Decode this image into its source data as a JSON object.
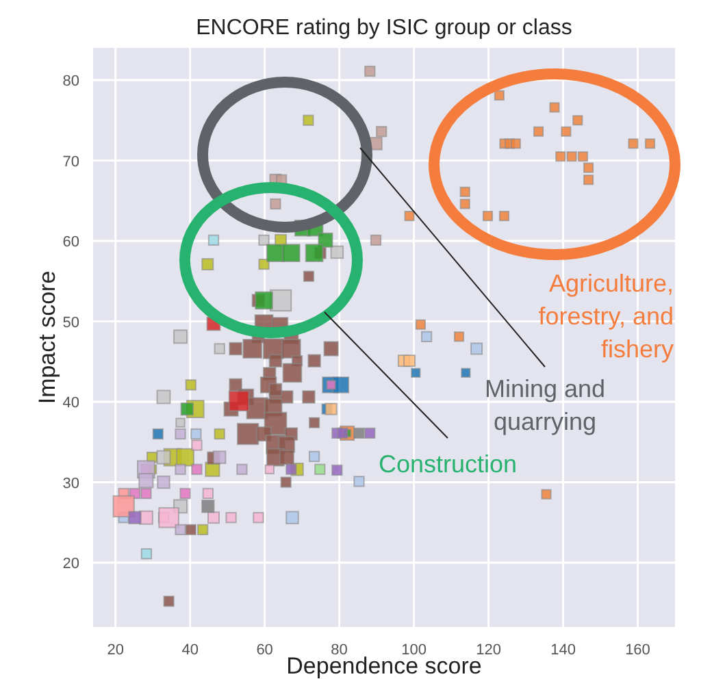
{
  "chart_data": {
    "type": "bubble",
    "title": "ENCORE rating by ISIC group or class",
    "xlabel": "Dependence score",
    "ylabel": "Impact score",
    "xlim": [
      14,
      170
    ],
    "ylim": [
      12,
      84
    ],
    "xticks": [
      20,
      40,
      60,
      80,
      100,
      120,
      140,
      160
    ],
    "yticks": [
      20,
      30,
      40,
      50,
      60,
      70,
      80
    ],
    "grid": true,
    "marker": "square",
    "annotations": [
      "Agriculture,\nforestry, and\nfishery",
      "Mining and\nquarrying",
      "Construction"
    ],
    "series": [
      {
        "color": "#f0843c",
        "x": [
          122.9,
          137.7,
          143.9,
          133.4,
          140.8,
          124.3,
          125.7,
          127.3,
          158.8,
          163.3,
          139.3,
          142.3,
          145.3,
          146.8,
          146.8,
          113.7,
          113.7,
          119.8,
          124.2,
          98.8,
          101.8,
          112.1,
          82.1,
          135.5
        ],
        "values": [
          78.1,
          76.6,
          75.0,
          73.6,
          73.6,
          72.1,
          72.1,
          72.1,
          72.1,
          72.1,
          70.5,
          70.5,
          70.5,
          69.1,
          67.6,
          66.1,
          64.6,
          63.1,
          63.1,
          63.1,
          49.6,
          48.1,
          36.1,
          28.5
        ],
        "sizes": [
          0.17,
          0.17,
          0.17,
          0.17,
          0.17,
          0.17,
          0.17,
          0.17,
          0.17,
          0.17,
          0.17,
          0.17,
          0.17,
          0.17,
          0.17,
          0.17,
          0.17,
          0.17,
          0.17,
          0.17,
          0.17,
          0.17,
          0.4,
          0.17
        ]
      },
      {
        "color": "#c49c94",
        "x": [
          88.2,
          91.3,
          89.8,
          62.9,
          64.5,
          62.9,
          89.8
        ],
        "values": [
          81.1,
          73.6,
          72.1,
          67.6,
          67.6,
          64.6,
          60.1
        ],
        "sizes": [
          0.2,
          0.2,
          0.3,
          0.25,
          0.2,
          0.2,
          0.2
        ]
      },
      {
        "color": "#bcbd22",
        "x": [
          71.7,
          64.3,
          44.7,
          59.8,
          40.2,
          41.4,
          29.8,
          35.3,
          38.7,
          46.0,
          68.7,
          29.8,
          43.4,
          47.9
        ],
        "values": [
          75.0,
          60.1,
          57.1,
          57.1,
          42.1,
          39.1,
          33.1,
          33.1,
          33.1,
          31.6,
          31.6,
          31.6,
          24.1,
          36.0
        ],
        "sizes": [
          0.2,
          0.25,
          0.25,
          0.2,
          0.2,
          0.6,
          0.2,
          0.6,
          0.6,
          0.4,
          0.3,
          0.15,
          0.2,
          0.2
        ]
      },
      {
        "color": "#c7c7c7",
        "x": [
          79.4,
          59.8,
          64.3,
          37.4,
          47.9,
          32.9,
          32.9,
          37.4,
          37.4
        ],
        "values": [
          58.6,
          60.1,
          52.6,
          48.1,
          46.6,
          40.6,
          33.1,
          27.0,
          37.4
        ],
        "sizes": [
          0.3,
          0.2,
          0.9,
          0.35,
          0.2,
          0.35,
          0.35,
          0.35,
          0.15
        ]
      },
      {
        "color": "#9edae5",
        "x": [
          46.3,
          28.3
        ],
        "values": [
          60.1,
          21.1
        ],
        "sizes": [
          0.2,
          0.2
        ]
      },
      {
        "color": "#8c564b",
        "x": [
          71.8,
          74.9,
          58.3,
          59.8,
          64.1,
          58.3,
          67.1,
          52.2,
          56.7,
          62.3,
          67.1,
          77.8,
          62.9,
          68.7,
          73.3,
          67.4,
          61.3,
          52.2,
          61.0,
          54.9,
          62.9,
          65.9,
          71.8,
          58.0,
          51.0,
          62.3,
          62.9,
          73.3,
          55.5,
          59.8,
          67.1,
          62.9,
          65.9,
          62.9,
          65.9,
          46.3,
          65.7,
          40.2,
          34.3,
          62.9
        ],
        "values": [
          55.6,
          58.5,
          52.6,
          49.7,
          49.5,
          48.1,
          48.1,
          46.6,
          46.6,
          46.6,
          46.6,
          46.6,
          45.1,
          45.1,
          45.1,
          43.6,
          43.5,
          42.1,
          42.1,
          40.6,
          40.6,
          40.6,
          40.6,
          39.2,
          39.1,
          39.3,
          37.3,
          37.4,
          36.0,
          36.0,
          36.0,
          34.7,
          34.7,
          33.1,
          33.1,
          33.0,
          30.0,
          24.1,
          15.2,
          41.5
        ],
        "sizes": [
          0.2,
          0.25,
          0.3,
          0.65,
          0.5,
          0.3,
          0.4,
          0.3,
          0.7,
          0.8,
          0.7,
          0.4,
          0.3,
          0.2,
          0.3,
          0.7,
          0.3,
          0.3,
          0.5,
          0.5,
          0.3,
          0.3,
          0.3,
          0.9,
          0.4,
          0.6,
          1,
          0.2,
          0.9,
          0.4,
          0.3,
          0.7,
          0.5,
          0.6,
          0.4,
          0.3,
          0.2,
          0.2,
          0.2,
          0.3
        ]
      },
      {
        "color": "#2ca02c",
        "x": [
          70.2,
          73.5,
          76.3,
          62.9,
          67.1,
          73.3,
          59.8,
          39.2,
          82.1
        ],
        "values": [
          61.6,
          61.6,
          60.1,
          58.5,
          58.5,
          58.5,
          52.6,
          39.1,
          36.1
        ],
        "sizes": [
          0.5,
          0.5,
          0.4,
          0.6,
          0.6,
          0.6,
          0.6,
          0.3,
          0.1
        ]
      },
      {
        "color": "#d62728",
        "x": [
          46.3,
          53.1
        ],
        "values": [
          49.7,
          40.1
        ],
        "sizes": [
          0.35,
          0.8
        ]
      },
      {
        "color": "#1f77b4",
        "x": [
          77.6,
          80.4,
          76.7,
          31.4,
          100.5,
          113.9
        ],
        "values": [
          42.1,
          42.1,
          39.1,
          36.0,
          43.6,
          43.6
        ],
        "sizes": [
          0.5,
          0.5,
          0.2,
          0.2,
          0.15,
          0.15
        ]
      },
      {
        "color": "#aec7e8",
        "x": [
          41.6,
          73.3,
          85.3,
          67.4,
          103.4,
          116.8,
          22.2
        ],
        "values": [
          36.0,
          33.2,
          30.1,
          25.6,
          48.1,
          46.6,
          25.6
        ],
        "sizes": [
          0.2,
          0.2,
          0.2,
          0.3,
          0.2,
          0.25,
          0.2
        ]
      },
      {
        "color": "#ffbb78",
        "x": [
          97.3,
          98.8,
          77.8
        ],
        "values": [
          45.1,
          45.1,
          39.1
        ],
        "sizes": [
          0.25,
          0.25,
          0.25
        ]
      },
      {
        "color": "#e377c2",
        "x": [
          77.8,
          41.8,
          28.2,
          25.2,
          28.2,
          38.7
        ],
        "values": [
          42.1,
          31.6,
          31.6,
          28.6,
          28.6,
          28.6
        ],
        "sizes": [
          0.15,
          0.2,
          0.2,
          0.2,
          0.2,
          0.2
        ]
      },
      {
        "color": "#f7b6d2",
        "x": [
          41.8,
          61.3,
          44.8,
          28.2,
          32.9,
          34.3,
          46.3,
          51.0,
          58.3
        ],
        "values": [
          34.6,
          31.6,
          28.6,
          25.6,
          25.6,
          25.6,
          25.6,
          25.6,
          25.6
        ],
        "sizes": [
          0.2,
          0.15,
          0.2,
          0.35,
          0.2,
          0.8,
          0.25,
          0.2,
          0.2
        ]
      },
      {
        "color": "#ff9896",
        "x": [
          22.2,
          22.2
        ],
        "values": [
          28.6,
          27.0
        ],
        "sizes": [
          0.2,
          0.9
        ]
      },
      {
        "color": "#9467bd",
        "x": [
          25.2,
          79.4,
          80.9,
          88.2,
          67.1,
          79.4
        ],
        "values": [
          25.6,
          36.1,
          36.1,
          36.1,
          31.6,
          31.5
        ],
        "sizes": [
          0.3,
          0.2,
          0.2,
          0.2,
          0.2,
          0.2
        ]
      },
      {
        "color": "#c5b0d5",
        "x": [
          37.4,
          28.2,
          28.2,
          32.9,
          37.4,
          53.9,
          47.9,
          37.4
        ],
        "values": [
          36.0,
          31.6,
          30.2,
          30.0,
          31.6,
          31.6,
          33.1,
          24.1
        ],
        "sizes": [
          0.2,
          0.6,
          0.4,
          0.3,
          0.2,
          0.2,
          0.3,
          0.2
        ]
      },
      {
        "color": "#7f7f7f",
        "x": [
          44.8,
          85.3
        ],
        "values": [
          27.0,
          36.1
        ],
        "sizes": [
          0.3,
          0.2
        ]
      },
      {
        "color": "#98df8a",
        "x": [
          74.8
        ],
        "values": [
          31.6
        ],
        "sizes": [
          0.2
        ]
      }
    ]
  }
}
